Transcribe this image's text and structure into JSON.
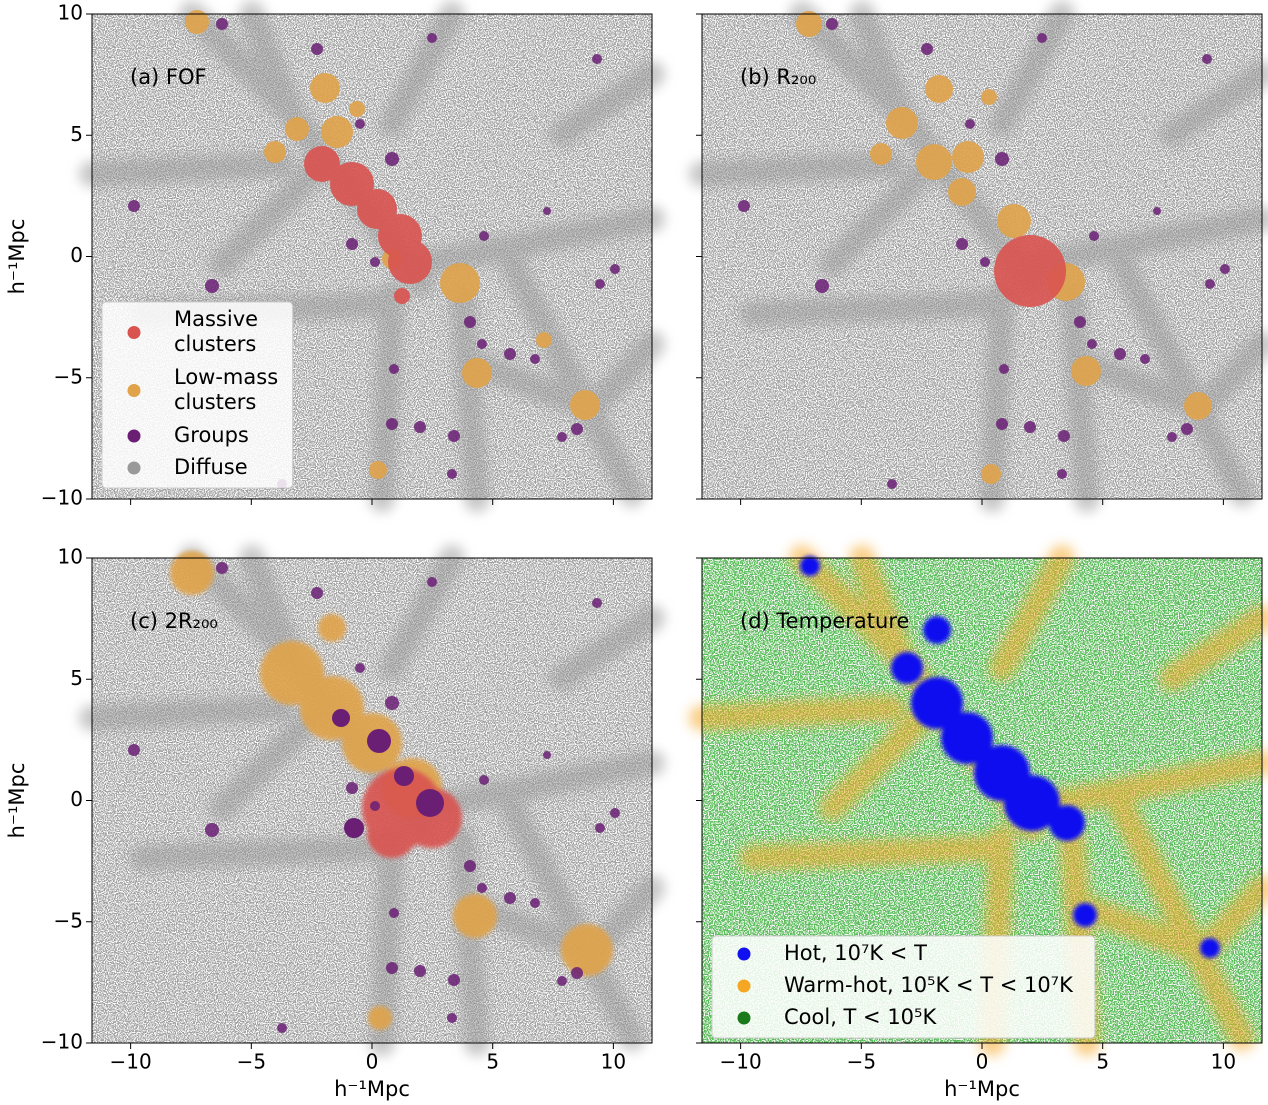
{
  "chart_data": [
    {
      "type": "scatter",
      "annotation": "(a) FOF",
      "xlim": [
        -11.6,
        11.6
      ],
      "ylim": [
        -10,
        10
      ],
      "yticks": [
        {
          "value": -10,
          "label": "−10"
        },
        {
          "value": -5,
          "label": "−5"
        },
        0,
        5,
        10
      ],
      "ylabel": "h⁻¹Mpc",
      "legend": [
        {
          "name": "Massive clusters",
          "color": "#d9534f"
        },
        {
          "name": "Low-mass clusters",
          "color": "#e0a34a"
        },
        {
          "name": "Groups",
          "color": "#6a1f75"
        },
        {
          "name": "Diffuse",
          "color": "#999999"
        }
      ]
    },
    {
      "type": "scatter",
      "annotation": "(b) R₂₀₀",
      "xlim": [
        -11.6,
        11.6
      ],
      "ylim": [
        -10,
        10
      ]
    },
    {
      "type": "scatter",
      "annotation": "(c) 2R₂₀₀",
      "xlim": [
        -11.6,
        11.6
      ],
      "ylim": [
        -10,
        10
      ],
      "xticks": [
        {
          "value": -10,
          "label": "−10"
        },
        {
          "value": -5,
          "label": "−5"
        },
        0,
        5,
        10
      ],
      "yticks": [
        {
          "value": -10,
          "label": "−10"
        },
        {
          "value": -5,
          "label": "−5"
        },
        0,
        5,
        10
      ],
      "xlabel": "h⁻¹Mpc",
      "ylabel": "h⁻¹Mpc"
    },
    {
      "type": "scatter",
      "annotation": "(d) Temperature",
      "xlim": [
        -11.6,
        11.6
      ],
      "ylim": [
        -10,
        10
      ],
      "xticks": [
        {
          "value": -10,
          "label": "−10"
        },
        {
          "value": -5,
          "label": "−5"
        },
        0,
        5,
        10
      ],
      "xlabel": "h⁻¹Mpc",
      "legend": [
        {
          "name": "Hot, 10⁷K < T",
          "color": "#1010f0"
        },
        {
          "name": "Warm-hot, 10⁵K < T < 10⁷K",
          "color": "#f5a623"
        },
        {
          "name": "Cool, T < 10⁵K",
          "color": "#1a7a1a"
        }
      ]
    }
  ]
}
